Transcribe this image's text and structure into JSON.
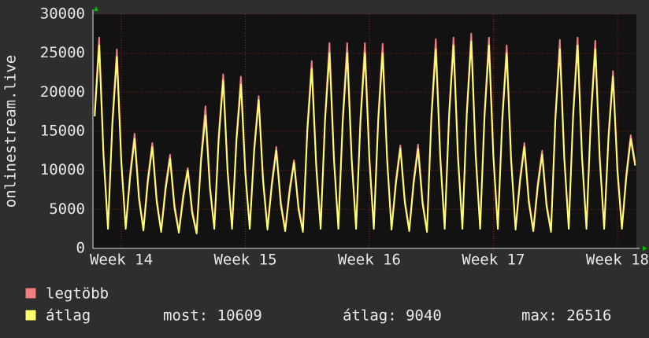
{
  "chart_data": {
    "type": "line",
    "y_label": "onlinestream.live",
    "x": [
      0.1,
      0.35,
      0.6,
      0.85,
      1.1,
      1.35,
      1.6,
      1.85,
      2.1,
      2.35,
      2.6,
      2.85,
      3.1,
      3.35,
      3.6,
      3.85,
      4.1,
      4.35,
      4.6,
      4.85,
      5.1,
      5.35,
      5.6,
      5.85,
      6.1,
      6.35,
      6.6,
      6.85,
      7.1,
      7.35,
      7.6,
      7.85,
      8.1,
      8.35,
      8.6,
      8.85,
      9.1,
      9.35,
      9.6,
      9.85,
      10.1,
      10.35,
      10.6,
      10.85,
      11.1,
      11.35,
      11.6,
      11.85,
      12.1,
      12.35,
      12.6,
      12.85,
      13.1,
      13.35,
      13.6,
      13.85,
      14.1,
      14.35,
      14.6,
      14.85,
      15.1,
      15.35,
      15.6,
      15.85,
      16.1,
      16.35,
      16.6,
      16.85,
      17.1,
      17.35,
      17.6,
      17.85,
      18.1,
      18.35,
      18.6,
      18.85,
      19.1,
      19.35,
      19.6,
      19.85,
      20.1,
      20.35,
      20.6,
      20.85,
      21.1,
      21.35,
      21.6,
      21.85,
      22.1,
      22.35,
      22.6,
      22.85,
      23.1,
      23.35,
      23.6,
      23.85,
      24.1,
      24.35,
      24.6,
      24.85,
      25.1,
      25.35,
      25.6,
      25.85,
      26.1,
      26.35,
      26.6,
      26.85,
      27.1,
      27.35,
      27.6,
      27.85,
      28.1,
      28.35,
      28.6,
      28.85,
      29.1,
      29.35,
      29.6,
      29.85,
      30.1,
      30.35,
      30.6
    ],
    "series": [
      {
        "name": "legtöbb",
        "color": "#f08080",
        "values": [
          17400,
          27000,
          12100,
          2700,
          16400,
          25500,
          11400,
          2700,
          9600,
          14700,
          6700,
          2500,
          9000,
          13500,
          6300,
          2300,
          8000,
          12000,
          5600,
          2200,
          7000,
          10300,
          4900,
          2100,
          11600,
          18200,
          8100,
          2700,
          14500,
          22300,
          10100,
          2700,
          14200,
          22000,
          9900,
          2700,
          12900,
          19500,
          9000,
          2600,
          8600,
          13000,
          6000,
          2400,
          7700,
          11300,
          5400,
          2300,
          15500,
          24000,
          10800,
          2700,
          16800,
          26300,
          11700,
          2700,
          16800,
          26300,
          11700,
          2700,
          16800,
          26300,
          11700,
          2700,
          16800,
          26200,
          11700,
          2600,
          8800,
          13200,
          6200,
          2400,
          8800,
          13300,
          6100,
          2300,
          17100,
          26800,
          11900,
          2700,
          17400,
          27000,
          12100,
          2700,
          17700,
          27500,
          12300,
          2700,
          17400,
          27000,
          12100,
          2700,
          16800,
          26000,
          11700,
          2600,
          9000,
          13500,
          6300,
          2400,
          8300,
          12500,
          5800,
          2300,
          17100,
          26700,
          11900,
          2700,
          17400,
          27000,
          12100,
          2700,
          17100,
          26600,
          11900,
          2700,
          14800,
          22700,
          10300,
          2700,
          9600,
          14500,
          11000
        ]
      },
      {
        "name": "átlag",
        "color": "#ffff70",
        "values": [
          16900,
          26000,
          11700,
          2500,
          15900,
          24500,
          11000,
          2500,
          9100,
          14000,
          6300,
          2300,
          8500,
          13000,
          5900,
          2100,
          7500,
          11500,
          5200,
          2000,
          6500,
          10000,
          4500,
          1900,
          11100,
          17000,
          7700,
          2500,
          14000,
          21500,
          9700,
          2500,
          13700,
          21000,
          9500,
          2500,
          12400,
          19000,
          8600,
          2400,
          8100,
          12500,
          5600,
          2200,
          7200,
          11000,
          5000,
          2100,
          15000,
          23000,
          10400,
          2500,
          16300,
          25000,
          11300,
          2500,
          16300,
          25000,
          11300,
          2500,
          16300,
          25000,
          11300,
          2500,
          16300,
          25000,
          11300,
          2400,
          8300,
          12800,
          5800,
          2200,
          8300,
          12700,
          5700,
          2100,
          16600,
          25500,
          11500,
          2500,
          16900,
          26000,
          11700,
          2500,
          17200,
          26500,
          11900,
          2500,
          16900,
          26000,
          11700,
          2500,
          16300,
          25000,
          11300,
          2400,
          8500,
          13000,
          5900,
          2200,
          7800,
          12000,
          5400,
          2100,
          16600,
          25500,
          11500,
          2500,
          16900,
          26000,
          11700,
          2500,
          16600,
          25500,
          11500,
          2500,
          14300,
          22000,
          9900,
          2500,
          9100,
          14000,
          10609
        ]
      }
    ],
    "xlim": [
      0,
      30.67
    ],
    "xticks": [
      {
        "value": 1.6,
        "label": "Week 14"
      },
      {
        "value": 8.6,
        "label": "Week 15"
      },
      {
        "value": 15.6,
        "label": "Week 16"
      },
      {
        "value": 22.6,
        "label": "Week 17"
      },
      {
        "value": 29.6,
        "label": "Week 18"
      }
    ],
    "ylim": [
      0,
      30000
    ],
    "yticks": [
      0,
      5000,
      10000,
      15000,
      20000,
      25000,
      30000
    ],
    "grid": true,
    "stats": [
      "most: 10609",
      "átlag: 9040",
      "max: 26516"
    ]
  }
}
